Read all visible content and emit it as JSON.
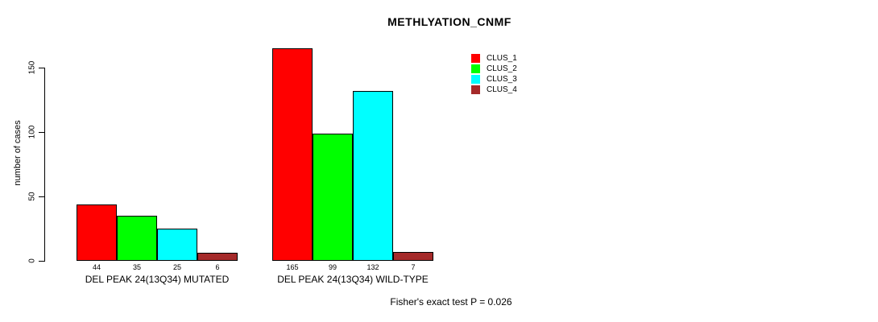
{
  "chart_data": {
    "type": "bar",
    "title": "METHLYATION_CNMF",
    "ylabel": "number of cases",
    "xlabel": "",
    "categories": [
      "DEL PEAK 24(13Q34) MUTATED",
      "DEL PEAK 24(13Q34) WILD-TYPE"
    ],
    "series": [
      {
        "name": "CLUS_1",
        "color": "#ff0000",
        "values": [
          44,
          165
        ]
      },
      {
        "name": "CLUS_2",
        "color": "#00ff00",
        "values": [
          35,
          99
        ]
      },
      {
        "name": "CLUS_3",
        "color": "#00ffff",
        "values": [
          25,
          132
        ]
      },
      {
        "name": "CLUS_4",
        "color": "#a52a2a",
        "values": [
          6,
          7
        ]
      }
    ],
    "bar_value_labels": [
      [
        "44",
        "35",
        "25",
        "6"
      ],
      [
        "165",
        "99",
        "132",
        "7"
      ]
    ],
    "yticks": [
      0,
      50,
      100,
      150
    ],
    "ylim": [
      0,
      165
    ],
    "grid": false,
    "legend_position": "top-right",
    "bar_border_color": "#000000",
    "axis_color": "#000000",
    "annotation": "Fisher's exact test P = 0.026"
  }
}
